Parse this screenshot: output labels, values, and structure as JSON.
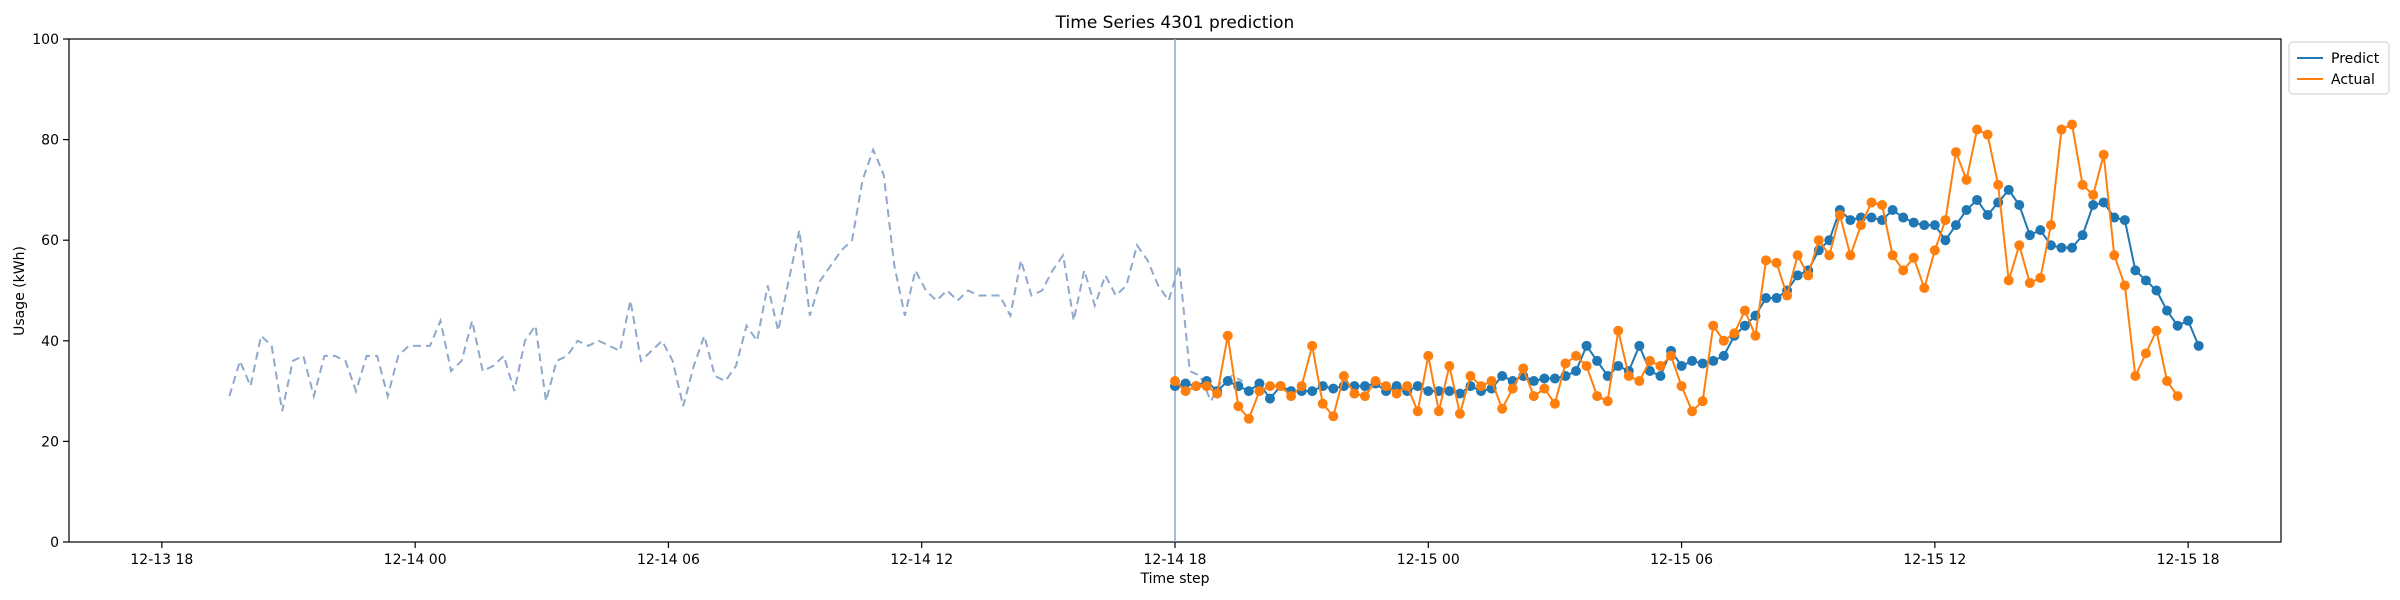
{
  "chart_data": {
    "type": "line",
    "title": "Time Series 4301 prediction",
    "xlabel": "Time step",
    "ylabel": "Usage (kWh)",
    "ylim": [
      0,
      100
    ],
    "yticks": [
      0,
      20,
      40,
      60,
      80,
      100
    ],
    "x_start": "2018-12-13 18:00",
    "x_ticks": [
      {
        "label": "12-13 18",
        "hour": 0
      },
      {
        "label": "12-14 00",
        "hour": 6
      },
      {
        "label": "12-14 06",
        "hour": 12
      },
      {
        "label": "12-14 12",
        "hour": 18
      },
      {
        "label": "12-14 18",
        "hour": 24
      },
      {
        "label": "12-15 00",
        "hour": 30
      },
      {
        "label": "12-15 06",
        "hour": 36
      },
      {
        "label": "12-15 12",
        "hour": 42
      },
      {
        "label": "12-15 18",
        "hour": 48
      }
    ],
    "x_range_hours": [
      -2.2,
      50.2
    ],
    "step_hours": 0.25,
    "grid": false,
    "legend_position": "upper-right outside",
    "forecast_start_hour": 24,
    "history": {
      "start_hour": 1.6,
      "values": [
        29,
        36,
        31,
        41,
        39,
        26,
        36,
        37,
        29,
        37,
        37,
        36,
        30,
        37,
        37,
        29,
        37,
        39,
        39,
        39,
        44,
        34,
        36,
        44,
        34,
        35,
        37,
        30,
        40,
        43,
        28,
        36,
        37,
        40,
        39,
        40,
        39,
        38,
        48,
        36,
        38,
        40,
        36,
        27,
        35,
        41,
        33,
        32,
        35,
        43,
        40,
        51,
        42,
        52,
        62,
        45,
        52,
        55,
        58,
        60,
        72,
        78,
        73,
        55,
        45,
        54,
        50,
        48,
        50,
        48,
        50,
        49,
        49,
        49,
        45,
        56,
        49,
        50,
        54,
        57,
        44,
        54,
        47,
        53,
        49,
        51,
        59,
        56,
        51,
        48,
        55,
        34,
        33,
        28,
        32,
        33,
        32
      ]
    },
    "series": [
      {
        "name": "Predict",
        "color": "#1f77b4",
        "start_hour": 24,
        "values": [
          31,
          31.5,
          31,
          32,
          30,
          32,
          31,
          30,
          31.5,
          28.5,
          31,
          30,
          30,
          30,
          31,
          30.5,
          31,
          31,
          31,
          31.5,
          30,
          31,
          30,
          31,
          30,
          30,
          30,
          29.5,
          31,
          30,
          30.5,
          33,
          32,
          33,
          32,
          32.5,
          32.5,
          33,
          34,
          39,
          36,
          33,
          35,
          34,
          39,
          34,
          33,
          38,
          35,
          36,
          35.5,
          36,
          37,
          41,
          43,
          45,
          48.5,
          48.5,
          50,
          53,
          54,
          58,
          60,
          66,
          64,
          64.5,
          64.5,
          64,
          66,
          64.5,
          63.5,
          63,
          63,
          60,
          63,
          66,
          68,
          65,
          67.5,
          70,
          67,
          61,
          62,
          59,
          58.5,
          58.5,
          61,
          67,
          67.5,
          64.5,
          64,
          54,
          52,
          50,
          46,
          43,
          44,
          39
        ]
      },
      {
        "name": "Actual",
        "color": "#ff7f0e",
        "start_hour": 24,
        "values": [
          32,
          30,
          31,
          31,
          29.5,
          41,
          27,
          24.5,
          30,
          31,
          31,
          29,
          31,
          39,
          27.5,
          25,
          33,
          29.5,
          29,
          32,
          31,
          29.5,
          31,
          26,
          37,
          26,
          35,
          25.5,
          33,
          31,
          32,
          26.5,
          30.5,
          34.5,
          29,
          30.5,
          27.5,
          35.5,
          37,
          35,
          29,
          28,
          42,
          33,
          32,
          36,
          35,
          37,
          31,
          26,
          28,
          43,
          40,
          41.5,
          46,
          41,
          56,
          55.5,
          49,
          57,
          53,
          60,
          57,
          65,
          57,
          63,
          67.5,
          67,
          57,
          54,
          56.5,
          50.5,
          58,
          64,
          77.5,
          72,
          82,
          81,
          71,
          52,
          59,
          51.5,
          52.5,
          63,
          82,
          83,
          71,
          69,
          77,
          57,
          51,
          33,
          37.5,
          42,
          32,
          29
        ]
      }
    ]
  }
}
